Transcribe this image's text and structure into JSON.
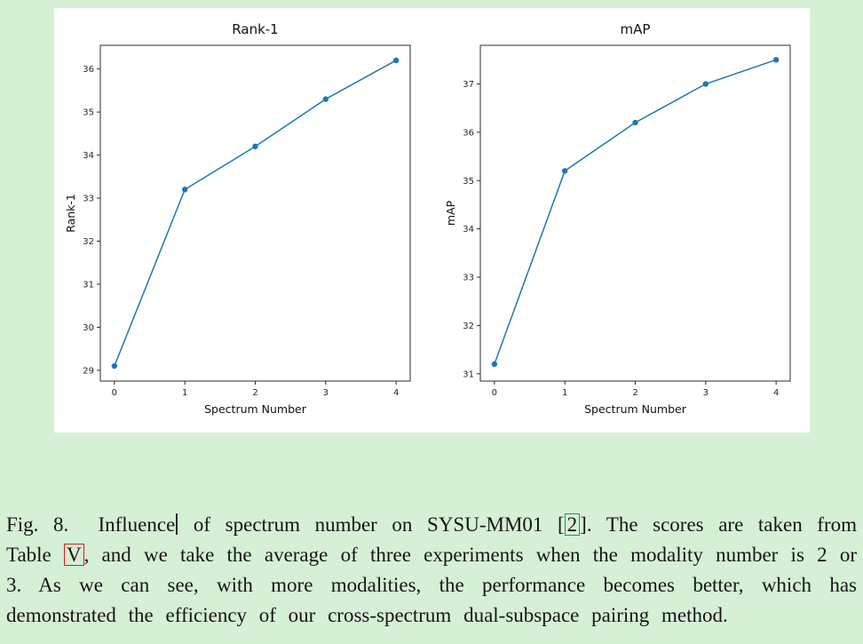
{
  "figure": {
    "colors": {
      "background": "#d6f0d6",
      "panel": "#ffffff",
      "line": "#1f77b4",
      "citation_box": "#00a14b",
      "table_ref_box": "#d02020"
    },
    "caption": {
      "prefix": "Fig. 8.  Influence",
      "after_cursor": " of spectrum number on SYSU-MM01 ",
      "open_bracket": "[",
      "citation": "2",
      "close_bracket": "].",
      "mid": " The scores are taken from Table ",
      "table_ref": "V",
      "rest": ", and we take the average of three experiments when the modality number is 2 or 3. As we can see, with more modalities, the performance becomes better, which has demonstrated the efficiency of our cross-spectrum dual-subspace pairing method."
    }
  },
  "chart_data": [
    {
      "type": "line",
      "title": "Rank-1",
      "xlabel": "Spectrum Number",
      "ylabel": "Rank-1",
      "x": [
        0,
        1,
        2,
        3,
        4
      ],
      "values": [
        29.1,
        33.2,
        34.2,
        35.3,
        36.2
      ],
      "xticks": [
        0,
        1,
        2,
        3,
        4
      ],
      "yticks": [
        29,
        30,
        31,
        32,
        33,
        34,
        35,
        36
      ],
      "xlim": [
        -0.2,
        4.2
      ],
      "ylim": [
        28.75,
        36.55
      ],
      "line_color": "#1f77b4",
      "marker": "circle",
      "grid": false,
      "legend": null
    },
    {
      "type": "line",
      "title": "mAP",
      "xlabel": "Spectrum Number",
      "ylabel": "mAP",
      "x": [
        0,
        1,
        2,
        3,
        4
      ],
      "values": [
        31.2,
        35.2,
        36.2,
        37.0,
        37.5
      ],
      "xticks": [
        0,
        1,
        2,
        3,
        4
      ],
      "yticks": [
        31,
        32,
        33,
        34,
        35,
        36,
        37
      ],
      "xlim": [
        -0.2,
        4.2
      ],
      "ylim": [
        30.85,
        37.8
      ],
      "line_color": "#1f77b4",
      "marker": "circle",
      "grid": false,
      "legend": null
    }
  ]
}
